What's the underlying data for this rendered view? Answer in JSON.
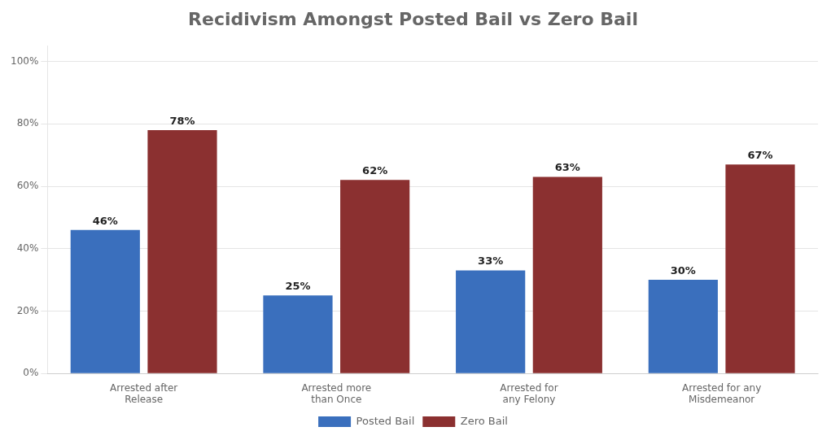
{
  "chart_data": {
    "type": "bar",
    "title": "Recidivism Amongst Posted Bail vs Zero Bail",
    "categories": [
      "Arrested after\nRelease",
      "Arrested more\nthan Once",
      "Arrested for\nany Felony",
      "Arrested for any\nMisdemeanor"
    ],
    "series": [
      {
        "name": "Posted Bail",
        "color": "#3a6fbd",
        "values": [
          46,
          25,
          33,
          30
        ],
        "value_labels": [
          "46%",
          "25%",
          "33%",
          "30%"
        ]
      },
      {
        "name": "Zero Bail",
        "color": "#8b3030",
        "values": [
          78,
          62,
          63,
          67
        ],
        "value_labels": [
          "78%",
          "62%",
          "63%",
          "67%"
        ]
      }
    ],
    "ylim": [
      0,
      105
    ],
    "yticks": [
      {
        "value": 0,
        "label": "0%"
      },
      {
        "value": 20,
        "label": "20%"
      },
      {
        "value": 40,
        "label": "40%"
      },
      {
        "value": 60,
        "label": "60%"
      },
      {
        "value": 80,
        "label": "80%"
      },
      {
        "value": 100,
        "label": "100%"
      }
    ],
    "grid": true,
    "legend": "bottom",
    "data_labels": true
  }
}
